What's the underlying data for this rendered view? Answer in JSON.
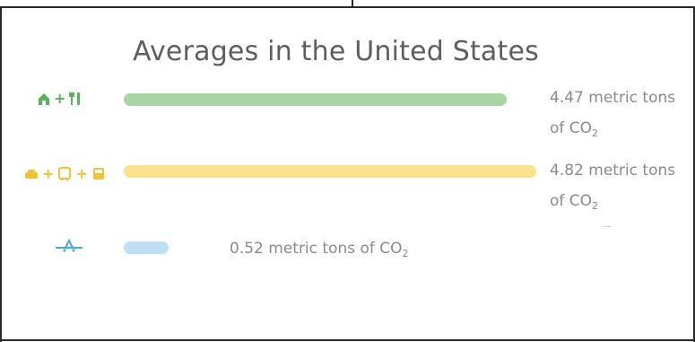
{
  "chart_data": {
    "type": "bar",
    "title": "Averages in the United States",
    "categories": [
      "home-food",
      "vehicle-transit",
      "flight"
    ],
    "values": [
      4.47,
      4.82,
      0.52
    ],
    "unit": "metric tons of CO2",
    "colors": [
      "#a8d4a6",
      "#fae38e",
      "#bde0f5"
    ],
    "icon_colors": [
      "#55b35a",
      "#f1c232",
      "#4aa8d8"
    ],
    "value_labels": [
      {
        "line1": "4.47 metric tons",
        "line2_prefix": "of CO",
        "line2_sub": "2"
      },
      {
        "line1": "4.82 metric tons",
        "line2_prefix": "of CO",
        "line2_sub": "2"
      },
      {
        "line1": "0.52 metric tons of CO",
        "line1_sub": "2"
      }
    ],
    "icons": [
      [
        "home-icon",
        "plus",
        "fork-knife-icon"
      ],
      [
        "car-icon",
        "plus",
        "bus-icon",
        "plus",
        "train-icon"
      ],
      [
        "airplane-icon"
      ]
    ]
  }
}
